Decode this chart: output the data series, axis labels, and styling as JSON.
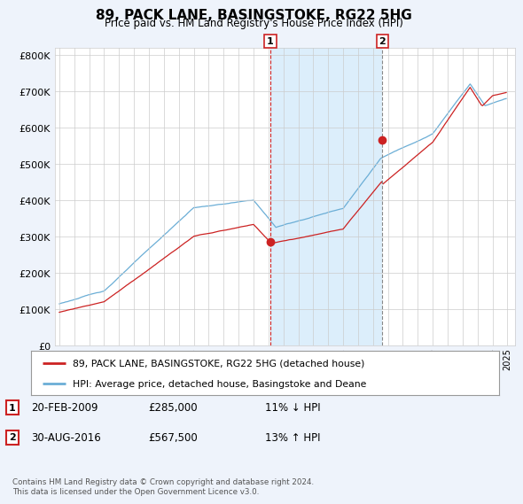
{
  "title": "89, PACK LANE, BASINGSTOKE, RG22 5HG",
  "subtitle": "Price paid vs. HM Land Registry's House Price Index (HPI)",
  "y_values": [
    0,
    100000,
    200000,
    300000,
    400000,
    500000,
    600000,
    700000,
    800000
  ],
  "ylim": [
    0,
    820000
  ],
  "hpi_color": "#6baed6",
  "price_color": "#cc2222",
  "shade_color": "#dceefb",
  "marker1_year": 2009.125,
  "marker2_year": 2016.625,
  "marker1_price": 285000,
  "marker2_price": 567500,
  "marker1_date": "20-FEB-2009",
  "marker2_date": "30-AUG-2016",
  "marker1_label": "11% ↓ HPI",
  "marker2_label": "13% ↑ HPI",
  "legend_label1": "89, PACK LANE, BASINGSTOKE, RG22 5HG (detached house)",
  "legend_label2": "HPI: Average price, detached house, Basingstoke and Deane",
  "footer": "Contains HM Land Registry data © Crown copyright and database right 2024.\nThis data is licensed under the Open Government Licence v3.0.",
  "bg_color": "#eef3fb",
  "plot_bg": "#ffffff",
  "xmin": 1994.7,
  "xmax": 2025.5
}
